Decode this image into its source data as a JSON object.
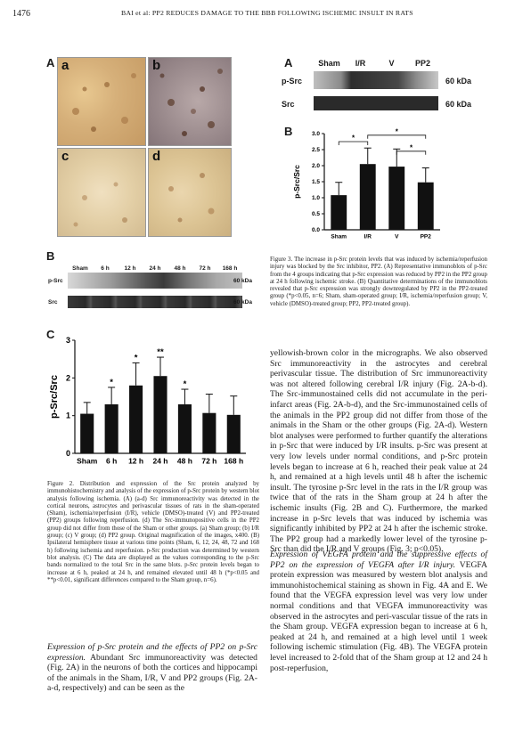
{
  "header": {
    "page_number": "1476",
    "running_title": "BAI et al: PP2 REDUCES DAMAGE TO THE BBB FOLLOWING ISCHEMIC INSULT IN RATS"
  },
  "fig2": {
    "panel_A": "A",
    "subpanels": [
      "a",
      "b",
      "c",
      "d"
    ],
    "panel_B": "B",
    "blot_lanes": [
      "Sham",
      "6 h",
      "12 h",
      "24 h",
      "48 h",
      "72 h",
      "168 h"
    ],
    "blot_rows": [
      {
        "label": "p-Src",
        "kda": "60 kDa"
      },
      {
        "label": "Src",
        "kda": "60 kDa"
      }
    ],
    "panel_C": "C",
    "caption": "Figure 2. Distribution and expression of the Src protein analyzed by immunohistochemistry and analysis of the expression of p-Src protein by western blot analysis following ischemia. (A) (a-d) Src immunoreactivity was detected in the cortical neurons, astrocytes and perivascular tissues of rats in the sham-operated (Sham), ischemia/reperfusion (I/R), vehicle (DMSO)-treated (V) and PP2-treated (PP2) groups following reperfusion. (d) The Src-immunopositive cells in the PP2 group did not differ from those of the Sham or other groups. (a) Sham group; (b) I/R group; (c) V group; (d) PP2 group. Original magnification of the images, x400. (B) Ipsilateral hemisphere tissue at various time points (Sham, 6, 12, 24, 48, 72 and 168 h) following ischemia and reperfusion. p-Src production was determined by western blot analysis. (C) The data are displayed as the values corresponding to the p-Src bands normalized to the total Src in the same blots. p-Src protein levels began to increase at 6 h, peaked at 24 h, and remained elevated until 48 h (*p<0.05 and **p<0.01, significant differences compared to the Sham group, n=6)."
  },
  "fig3": {
    "panel_A": "A",
    "blot_lanes": [
      "Sham",
      "I/R",
      "V",
      "PP2"
    ],
    "blot_rows": [
      {
        "label": "p-Src",
        "kda": "60 kDa"
      },
      {
        "label": "Src",
        "kda": "60 kDa"
      }
    ],
    "panel_B": "B",
    "caption": "Figure 3. The increase in p-Src protein levels that was induced by ischemia/reperfusion injury was blocked by the Src inhibitor, PP2. (A) Representative immunoblots of p-Src from the 4 groups indicating that p-Src expression was reduced by PP2 in the PP2 group at 24 h following ischemic stroke. (B) Quantitative determinations of the immunoblots revealed that p-Src expression was strongly downregulated by PP2 in the PP2-treated group (*p<0.05, n=6; Sham, sham-operated group; I/R, ischemia/reperfusion group; V, vehicle (DMSO)-treated group; PP2, PP2-treated group)."
  },
  "chart_data": [
    {
      "type": "bar",
      "panel": "Figure 2C",
      "categories": [
        "Sham",
        "6 h",
        "12 h",
        "24 h",
        "48 h",
        "72 h",
        "168 h"
      ],
      "values": [
        1.05,
        1.3,
        1.8,
        2.05,
        1.3,
        1.07,
        1.02
      ],
      "errors": [
        0.3,
        0.45,
        0.6,
        0.5,
        0.4,
        0.5,
        0.5
      ],
      "significance": [
        "",
        "*",
        "*",
        "**",
        "*",
        "",
        ""
      ],
      "ylabel": "p-Src/Src",
      "ylim": [
        0,
        3
      ],
      "yticks": [
        "0",
        "1",
        "2",
        "3"
      ],
      "bar_color": "#111111"
    },
    {
      "type": "bar",
      "panel": "Figure 3B",
      "categories": [
        "Sham",
        "I/R",
        "V",
        "PP2"
      ],
      "values": [
        1.08,
        2.05,
        1.97,
        1.48
      ],
      "errors": [
        0.4,
        0.5,
        0.55,
        0.45
      ],
      "significance_brackets": [
        [
          "Sham",
          "I/R",
          "*"
        ],
        [
          "I/R",
          "PP2",
          "*"
        ],
        [
          "V",
          "PP2",
          "*"
        ]
      ],
      "ylabel": "p-Src/Src",
      "ylim": [
        0,
        3.0
      ],
      "yticks": [
        "0.0",
        "0.5",
        "1.0",
        "1.5",
        "2.0",
        "2.5",
        "3.0"
      ],
      "bar_color": "#111111"
    }
  ],
  "right_text": [
    "yellowish-brown color in the micrographs. We also observed Src immunoreactivity in the astrocytes and cerebral perivascular tissue. The distribution of Src immunoreactivity was not altered following cerebral I/R injury (Fig. 2A-b-d). The Src-immunostained cells did not accumulate in the peri-infarct areas (Fig. 2A-b-d), and the Src-immunostained cells of the animals in the PP2 group did not differ from those of the animals in the Sham or the other groups (Fig. 2A-d). Western blot analyses were performed to further quantify the alterations in p-Src that were induced by I/R insults. p-Src was present at very low levels under normal conditions, and p-Src protein levels began to increase at 6 h, reached their peak value at 24 h, and remained at a high levels until 48 h after the ischemic insult. The tyrosine p-Src level in the rats in the I/R group was twice that of the rats in the Sham group at 24 h after the ischemic insults (Fig. 2B and C). Furthermore, the marked increase in p-Src levels that was induced by ischemia was significantly inhibited by PP2 at 24 h after the ischemic stroke. The PP2 group had a markedly lower level of the tyrosine p-Src than did the I/R and V groups (Fig. 3; p<0.05).",
    {
      "heading": "Expression of VEGFA protein and the suppressive effects of PP2 on the expression of VEGFA after I/R injury.",
      "text": "VEGFA protein expression was measured by western blot analysis and immunohistochemical staining as shown in Fig. 4A and E. We found that the VEGFA expression level was very low under normal conditions and that VEGFA immunoreactivity was observed in the astrocytes and peri-vascular tissue of the rats in the Sham group. VEGFA expression began to increase at 6 h, peaked at 24 h, and remained at a high level until 1 week following ischemic stimulation (Fig. 4B). The VEGFA protein level increased to 2-fold that of the Sham group at 12 and 24 h post-reperfusion,"
    }
  ],
  "left_text": {
    "heading": "Expression of p-Src protein and the effects of PP2 on p-Src expression.",
    "text": "Abundant Src immunoreactivity was detected (Fig. 2A) in the neurons of both the cortices and hippocampi of the animals in the Sham, I/R, V and PP2 groups (Fig. 2A-a-d, respectively) and can be seen as the"
  }
}
